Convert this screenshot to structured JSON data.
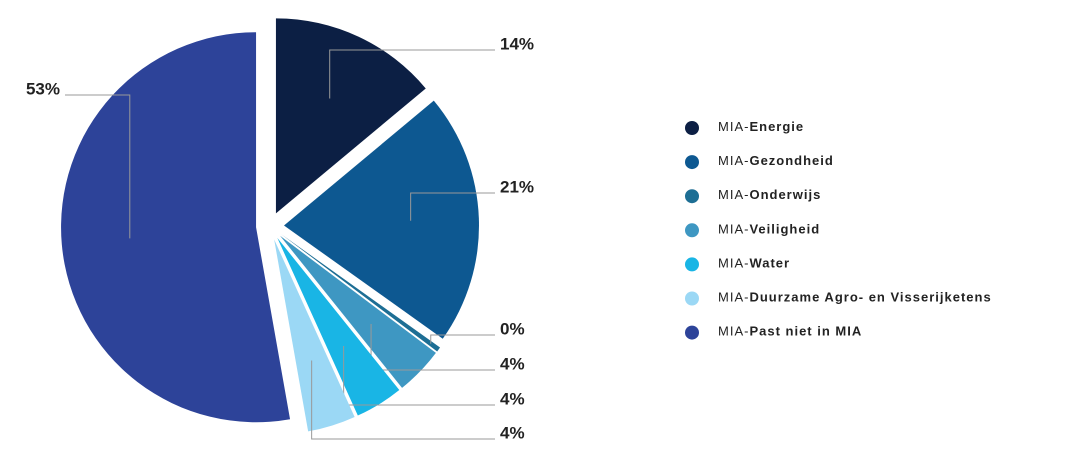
{
  "chart_data": {
    "type": "pie",
    "categories": [
      "MIA-Energie",
      "MIA-Gezondheid",
      "MIA-Onderwijs",
      "MIA-Veiligheid",
      "MIA-Water",
      "MIA-Duurzame Agro- en Visserijketens",
      "MIA-Past niet in MIA"
    ],
    "values": [
      14,
      21,
      0.4,
      4,
      4,
      4,
      53
    ],
    "value_labels": [
      "14%",
      "21%",
      "0%",
      "4%",
      "4%",
      "4%",
      "53%"
    ],
    "colors": [
      "#0c1f44",
      "#0d5891",
      "#1d6e94",
      "#3e97c2",
      "#19b5e5",
      "#9bd8f5",
      "#2d4399"
    ],
    "legend": "right"
  }
}
